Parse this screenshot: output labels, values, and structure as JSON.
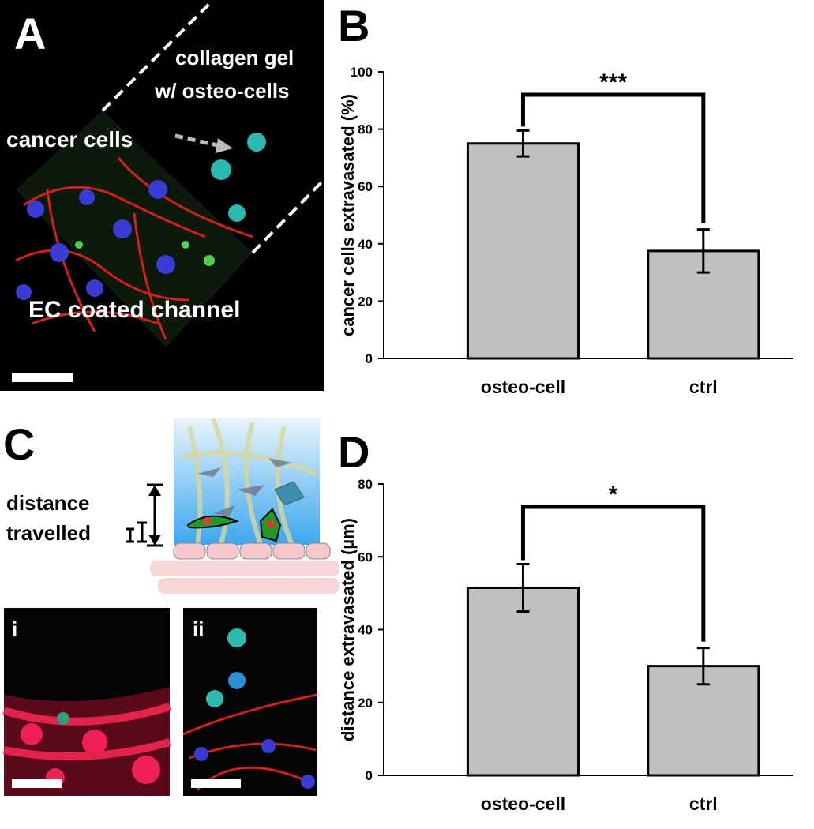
{
  "panels": {
    "a": {
      "letter": "A",
      "region_top": "collagen gel",
      "region_top_2": "w/ osteo-cells",
      "pointer": "cancer cells",
      "region_bottom": "EC coated channel"
    },
    "b": {
      "letter": "B"
    },
    "c": {
      "letter": "C",
      "measure": "distance",
      "measure_2": "travelled",
      "image_1": "i",
      "image_2": "ii"
    },
    "d": {
      "letter": "D"
    }
  },
  "chart_data": [
    {
      "type": "bar",
      "ylabel": "cancer cells extravasated (%)",
      "categories": [
        "osteo-cell",
        "ctrl"
      ],
      "values": [
        75,
        37.5
      ],
      "errors": [
        4.5,
        7.5
      ],
      "color": "#c0c0c0",
      "ylim": [
        0,
        100
      ],
      "yticks": [
        0,
        20,
        40,
        60,
        80,
        100
      ],
      "significance": "***"
    },
    {
      "type": "bar",
      "ylabel": "distance extravasated (µm)",
      "categories": [
        "osteo-cell",
        "ctrl"
      ],
      "values": [
        51.5,
        30
      ],
      "errors": [
        6.5,
        5
      ],
      "color": "#c0c0c0",
      "ylim": [
        0,
        80
      ],
      "yticks": [
        0,
        20,
        40,
        60,
        80
      ],
      "significance": "*"
    }
  ]
}
